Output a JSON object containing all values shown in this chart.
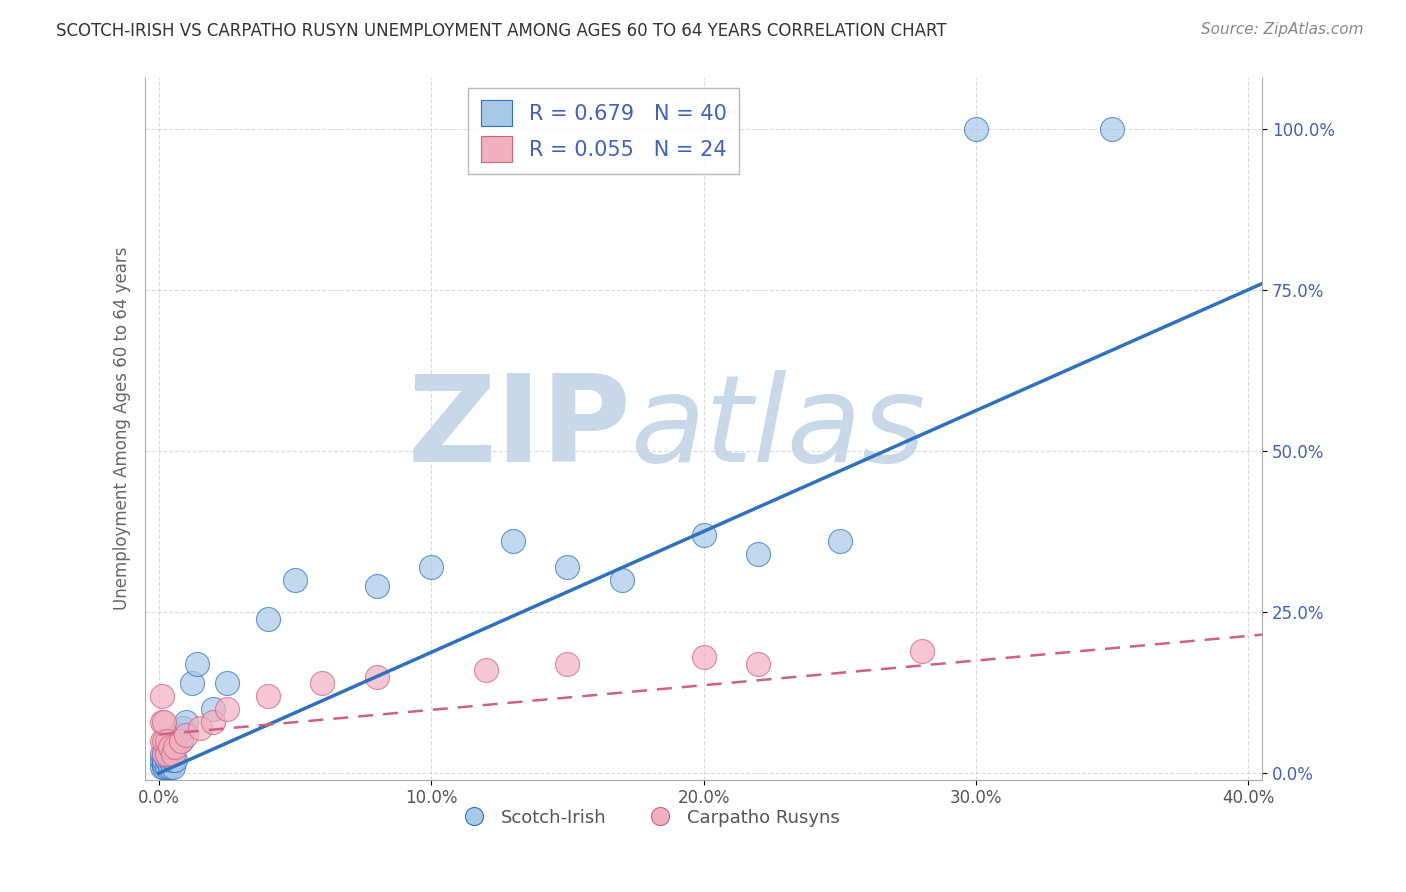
{
  "title": "SCOTCH-IRISH VS CARPATHO RUSYN UNEMPLOYMENT AMONG AGES 60 TO 64 YEARS CORRELATION CHART",
  "source": "Source: ZipAtlas.com",
  "ylabel": "Unemployment Among Ages 60 to 64 years",
  "xlabel": "",
  "xlim": [
    -0.005,
    0.405
  ],
  "ylim": [
    -0.01,
    1.08
  ],
  "xticks": [
    0.0,
    0.1,
    0.2,
    0.3,
    0.4
  ],
  "yticks": [
    0.0,
    0.25,
    0.5,
    0.75,
    1.0
  ],
  "xtick_labels": [
    "0.0%",
    "10.0%",
    "20.0%",
    "30.0%",
    "40.0%"
  ],
  "ytick_labels": [
    "0.0%",
    "25.0%",
    "50.0%",
    "75.0%",
    "100.0%"
  ],
  "scotch_irish_R": 0.679,
  "scotch_irish_N": 40,
  "carpatho_rusyn_R": 0.055,
  "carpatho_rusyn_N": 24,
  "scotch_irish_color": "#a8c8e8",
  "carpatho_rusyn_color": "#f0b0c0",
  "regression_blue": "#3070c0",
  "regression_pink": "#d06080",
  "text_color": "#4060c0",
  "background_color": "#ffffff",
  "grid_color": "#cccccc",
  "title_color": "#333333",
  "watermark_zip": "ZIP",
  "watermark_atlas": "atlas",
  "watermark_color": "#c8d8e8",
  "legend_label_blue": "Scotch-Irish",
  "legend_label_pink": "Carpatho Rusyns",
  "scotch_irish_x": [
    0.001,
    0.001,
    0.001,
    0.002,
    0.002,
    0.002,
    0.002,
    0.003,
    0.003,
    0.003,
    0.003,
    0.004,
    0.004,
    0.004,
    0.004,
    0.005,
    0.005,
    0.005,
    0.006,
    0.006,
    0.007,
    0.008,
    0.009,
    0.01,
    0.012,
    0.014,
    0.02,
    0.025,
    0.04,
    0.05,
    0.08,
    0.1,
    0.13,
    0.15,
    0.17,
    0.2,
    0.22,
    0.25,
    0.3,
    0.35
  ],
  "scotch_irish_y": [
    0.01,
    0.02,
    0.03,
    0.01,
    0.015,
    0.02,
    0.03,
    0.01,
    0.02,
    0.03,
    0.04,
    0.01,
    0.02,
    0.03,
    0.04,
    0.01,
    0.02,
    0.04,
    0.02,
    0.05,
    0.06,
    0.05,
    0.07,
    0.08,
    0.14,
    0.17,
    0.1,
    0.14,
    0.24,
    0.3,
    0.29,
    0.32,
    0.36,
    0.32,
    0.3,
    0.37,
    0.34,
    0.36,
    1.0,
    1.0
  ],
  "carpatho_rusyn_x": [
    0.001,
    0.001,
    0.001,
    0.002,
    0.002,
    0.002,
    0.003,
    0.003,
    0.004,
    0.005,
    0.006,
    0.008,
    0.01,
    0.015,
    0.02,
    0.025,
    0.04,
    0.06,
    0.08,
    0.12,
    0.15,
    0.2,
    0.22,
    0.28
  ],
  "carpatho_rusyn_y": [
    0.05,
    0.08,
    0.12,
    0.03,
    0.05,
    0.08,
    0.03,
    0.05,
    0.04,
    0.03,
    0.04,
    0.05,
    0.06,
    0.07,
    0.08,
    0.1,
    0.12,
    0.14,
    0.15,
    0.16,
    0.17,
    0.18,
    0.17,
    0.19
  ],
  "blue_line_x0": 0.0,
  "blue_line_y0": 0.0,
  "blue_line_x1": 0.405,
  "blue_line_y1": 0.76,
  "pink_line_x0": 0.0,
  "pink_line_y0": 0.06,
  "pink_line_x1": 0.405,
  "pink_line_y1": 0.215
}
